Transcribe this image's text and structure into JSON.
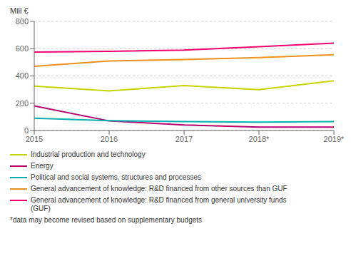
{
  "chart_data": {
    "type": "line",
    "y_label": "Mill €",
    "categories": [
      "2015",
      "2016",
      "2017",
      "2018*",
      "2019*"
    ],
    "series": [
      {
        "name": "Industrial production and technology",
        "color": "#c8d400",
        "values": [
          325,
          290,
          330,
          300,
          365
        ]
      },
      {
        "name": "Energy",
        "color": "#b5006e",
        "values": [
          180,
          70,
          40,
          25,
          25
        ]
      },
      {
        "name": "Political and social systems, structures and processes",
        "color": "#00b0b0",
        "values": [
          90,
          72,
          65,
          62,
          65
        ]
      },
      {
        "name": "General advancement of knowledge: R&D financed from other sources than GUF",
        "color": "#f0901e",
        "values": [
          470,
          510,
          520,
          535,
          555
        ]
      },
      {
        "name": "General advancement of knowledge: R&D financed from general university funds\n(GUF)",
        "color": "#f0006e",
        "values": [
          575,
          580,
          590,
          615,
          640
        ]
      }
    ],
    "ylim": [
      0,
      800
    ],
    "yticks": [
      0,
      200,
      400,
      600,
      800
    ],
    "grid": true,
    "legend": "bottom",
    "annotations": [
      "*data may become revised based on supplementary budgets"
    ]
  }
}
